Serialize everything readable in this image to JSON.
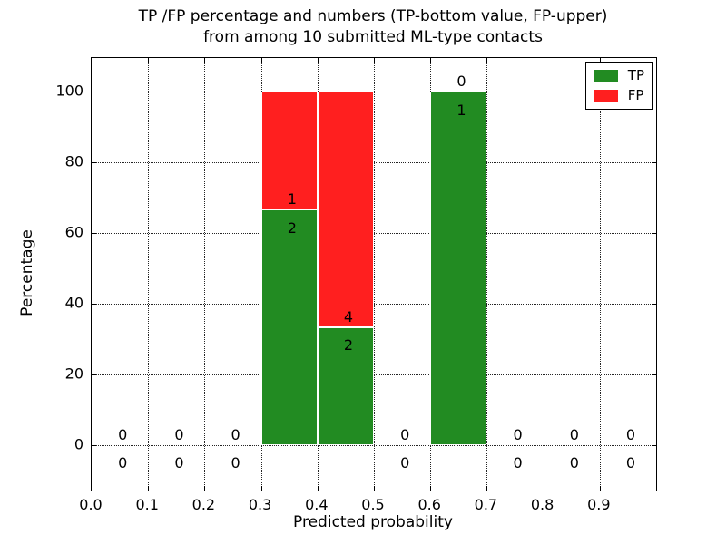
{
  "chart_data": {
    "type": "bar",
    "stacked": true,
    "title_lines": [
      "TP /FP percentage and numbers (TP-bottom value, FP-upper)",
      "from among 10 submitted ML-type contacts"
    ],
    "xlabel": "Predicted probability",
    "ylabel": "Percentage",
    "xlim": [
      0.0,
      1.0
    ],
    "ylim": [
      -12.8,
      109.6
    ],
    "xticks": [
      {
        "value": 0.0,
        "label": "0.0"
      },
      {
        "value": 0.1,
        "label": "0.1"
      },
      {
        "value": 0.2,
        "label": "0.2"
      },
      {
        "value": 0.3,
        "label": "0.3"
      },
      {
        "value": 0.4,
        "label": "0.4"
      },
      {
        "value": 0.5,
        "label": "0.5"
      },
      {
        "value": 0.6,
        "label": "0.6"
      },
      {
        "value": 0.7,
        "label": "0.7"
      },
      {
        "value": 0.8,
        "label": "0.8"
      },
      {
        "value": 0.9,
        "label": "0.9"
      }
    ],
    "yticks": [
      {
        "value": 0,
        "label": "0"
      },
      {
        "value": 20,
        "label": "20"
      },
      {
        "value": 40,
        "label": "40"
      },
      {
        "value": 60,
        "label": "60"
      },
      {
        "value": 80,
        "label": "80"
      },
      {
        "value": 100,
        "label": "100"
      }
    ],
    "grid": true,
    "legend": {
      "position": "upper right",
      "items": [
        {
          "label": "TP",
          "color": "#228b22"
        },
        {
          "label": "FP",
          "color": "#ff1f1f"
        }
      ]
    },
    "colors": {
      "tp": "#228b22",
      "fp": "#ff1f1f",
      "bar_edge": "#ffffff",
      "grid": "#000000",
      "text": "#000000"
    },
    "total_contacts": 10,
    "bins": [
      {
        "x0": 0.0,
        "x1": 0.1,
        "tp_count": 0,
        "fp_count": 0,
        "tp_pct": 0,
        "fp_pct": 0
      },
      {
        "x0": 0.1,
        "x1": 0.2,
        "tp_count": 0,
        "fp_count": 0,
        "tp_pct": 0,
        "fp_pct": 0
      },
      {
        "x0": 0.2,
        "x1": 0.3,
        "tp_count": 0,
        "fp_count": 0,
        "tp_pct": 0,
        "fp_pct": 0
      },
      {
        "x0": 0.3,
        "x1": 0.4,
        "tp_count": 2,
        "fp_count": 1,
        "tp_pct": 66.67,
        "fp_pct": 33.33
      },
      {
        "x0": 0.4,
        "x1": 0.5,
        "tp_count": 2,
        "fp_count": 4,
        "tp_pct": 33.33,
        "fp_pct": 66.67
      },
      {
        "x0": 0.5,
        "x1": 0.6,
        "tp_count": 0,
        "fp_count": 0,
        "tp_pct": 0,
        "fp_pct": 0
      },
      {
        "x0": 0.6,
        "x1": 0.7,
        "tp_count": 1,
        "fp_count": 0,
        "tp_pct": 100,
        "fp_pct": 0
      },
      {
        "x0": 0.7,
        "x1": 0.8,
        "tp_count": 0,
        "fp_count": 0,
        "tp_pct": 0,
        "fp_pct": 0
      },
      {
        "x0": 0.8,
        "x1": 0.9,
        "tp_count": 0,
        "fp_count": 0,
        "tp_pct": 0,
        "fp_pct": 0
      },
      {
        "x0": 0.9,
        "x1": 1.0,
        "tp_count": 0,
        "fp_count": 0,
        "tp_pct": 0,
        "fp_pct": 0
      }
    ],
    "label_layout": {
      "dx_from_bin_left": 0.055,
      "fp_dy": 2.9,
      "tp_dy": -5.2
    }
  }
}
